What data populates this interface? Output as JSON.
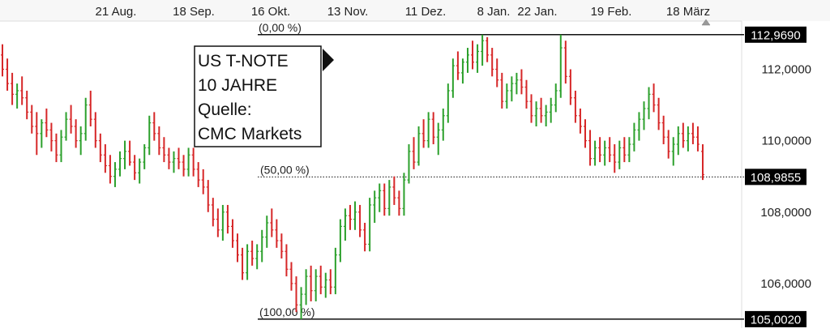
{
  "chart_data": {
    "type": "ohlc",
    "title": "",
    "info_box": [
      "US T-NOTE",
      "10 JAHRE",
      "Quelle:",
      "CMC Markets"
    ],
    "x_ticks": [
      "21 Aug.",
      "18 Sep.",
      "16 Okt.",
      "13 Nov.",
      "11 Dez.",
      "8 Jan.",
      "22 Jan.",
      "19 Feb.",
      "18 März"
    ],
    "y_ticks": [
      "106,0000",
      "108,0000",
      "110,0000",
      "112,0000"
    ],
    "y_tick_values": [
      106,
      108,
      110,
      112
    ],
    "ylim": [
      104.75,
      113.35
    ],
    "grid": false,
    "legend": "none",
    "fib_levels": [
      {
        "label": "(0,00 %)",
        "value": 112.969,
        "tag": "112,9690"
      },
      {
        "label": "(50,00 %)",
        "value": 108.9855,
        "tag": "108,9855"
      },
      {
        "label": "(100,00 %)",
        "value": 105.002,
        "tag": "105,0020"
      }
    ],
    "colors": {
      "up": "#2ca02c",
      "down": "#d62728",
      "line": "#111111",
      "tag_bg": "#000000",
      "axis_bg": "#f7f7f7"
    },
    "bars": [
      [
        112.4,
        112.7,
        111.8,
        112.0
      ],
      [
        112.0,
        112.3,
        111.4,
        111.6
      ],
      [
        111.6,
        111.9,
        111.0,
        111.3
      ],
      [
        111.3,
        111.6,
        110.9,
        111.4
      ],
      [
        111.4,
        111.8,
        111.0,
        111.2
      ],
      [
        111.2,
        111.4,
        110.6,
        110.8
      ],
      [
        110.8,
        111.0,
        110.2,
        110.4
      ],
      [
        110.4,
        110.8,
        109.6,
        110.2
      ],
      [
        110.2,
        110.6,
        109.8,
        110.5
      ],
      [
        110.5,
        110.9,
        110.1,
        110.3
      ],
      [
        110.3,
        110.5,
        109.7,
        110.0
      ],
      [
        110.0,
        110.2,
        109.4,
        109.6
      ],
      [
        109.6,
        110.3,
        109.4,
        110.1
      ],
      [
        110.1,
        110.8,
        110.0,
        110.6
      ],
      [
        110.6,
        111.0,
        110.2,
        110.4
      ],
      [
        110.4,
        110.6,
        109.8,
        110.0
      ],
      [
        110.0,
        110.4,
        109.6,
        110.2
      ],
      [
        110.2,
        111.2,
        110.0,
        111.0
      ],
      [
        111.0,
        111.4,
        110.4,
        110.6
      ],
      [
        110.6,
        110.8,
        109.8,
        110.0
      ],
      [
        110.0,
        110.2,
        109.4,
        109.6
      ],
      [
        109.6,
        109.9,
        109.1,
        109.3
      ],
      [
        109.3,
        109.6,
        108.8,
        109.0
      ],
      [
        109.0,
        109.4,
        108.7,
        109.2
      ],
      [
        109.2,
        109.7,
        109.0,
        109.5
      ],
      [
        109.5,
        110.0,
        109.2,
        109.7
      ],
      [
        109.7,
        110.0,
        109.3,
        109.4
      ],
      [
        109.4,
        109.6,
        108.9,
        109.1
      ],
      [
        109.1,
        109.5,
        108.8,
        109.4
      ],
      [
        109.4,
        109.9,
        109.2,
        109.8
      ],
      [
        109.8,
        110.7,
        109.6,
        110.5
      ],
      [
        110.5,
        110.8,
        110.0,
        110.2
      ],
      [
        110.2,
        110.4,
        109.6,
        109.8
      ],
      [
        109.8,
        110.1,
        109.4,
        109.6
      ],
      [
        109.6,
        109.8,
        109.2,
        109.4
      ],
      [
        109.4,
        109.7,
        109.1,
        109.5
      ],
      [
        109.5,
        109.8,
        109.2,
        109.4
      ],
      [
        109.4,
        109.6,
        109.0,
        109.2
      ],
      [
        109.2,
        109.8,
        109.0,
        109.6
      ],
      [
        109.6,
        109.8,
        109.0,
        109.2
      ],
      [
        109.2,
        109.4,
        108.7,
        108.9
      ],
      [
        108.9,
        109.2,
        108.5,
        108.7
      ],
      [
        108.7,
        108.9,
        108.0,
        108.2
      ],
      [
        108.2,
        108.4,
        107.6,
        107.8
      ],
      [
        107.8,
        108.1,
        107.3,
        107.5
      ],
      [
        107.5,
        108.2,
        107.2,
        108.0
      ],
      [
        108.0,
        108.2,
        107.4,
        107.6
      ],
      [
        107.6,
        107.8,
        107.0,
        107.2
      ],
      [
        107.2,
        107.4,
        106.6,
        106.8
      ],
      [
        106.8,
        107.0,
        106.1,
        106.3
      ],
      [
        106.3,
        107.1,
        106.1,
        106.9
      ],
      [
        106.9,
        107.2,
        106.5,
        106.7
      ],
      [
        106.7,
        107.1,
        106.4,
        106.9
      ],
      [
        106.9,
        107.5,
        106.6,
        107.3
      ],
      [
        107.3,
        107.9,
        107.0,
        107.7
      ],
      [
        107.7,
        108.1,
        107.3,
        107.5
      ],
      [
        107.5,
        107.8,
        107.0,
        107.2
      ],
      [
        107.2,
        107.4,
        106.7,
        106.9
      ],
      [
        106.9,
        107.1,
        106.2,
        106.4
      ],
      [
        106.4,
        106.6,
        105.8,
        106.0
      ],
      [
        106.0,
        106.2,
        105.2,
        105.4
      ],
      [
        105.4,
        105.9,
        105.0,
        105.7
      ],
      [
        105.7,
        106.4,
        105.4,
        106.2
      ],
      [
        106.2,
        106.5,
        105.5,
        105.8
      ],
      [
        105.8,
        106.4,
        105.5,
        106.2
      ],
      [
        106.2,
        106.5,
        105.7,
        105.9
      ],
      [
        105.9,
        106.3,
        105.6,
        106.1
      ],
      [
        106.1,
        106.4,
        105.7,
        105.9
      ],
      [
        105.9,
        107.0,
        105.7,
        106.8
      ],
      [
        106.8,
        107.8,
        106.6,
        107.6
      ],
      [
        107.6,
        108.1,
        107.2,
        107.9
      ],
      [
        107.9,
        108.2,
        107.5,
        107.8
      ],
      [
        107.8,
        108.3,
        107.5,
        108.0
      ],
      [
        108.0,
        108.2,
        107.3,
        107.5
      ],
      [
        107.5,
        107.7,
        106.9,
        107.1
      ],
      [
        107.1,
        108.4,
        106.9,
        108.2
      ],
      [
        108.2,
        108.6,
        107.7,
        108.4
      ],
      [
        108.4,
        108.8,
        108.0,
        108.6
      ],
      [
        108.6,
        108.8,
        107.9,
        108.1
      ],
      [
        108.1,
        108.9,
        107.9,
        108.7
      ],
      [
        108.7,
        109.0,
        108.2,
        108.4
      ],
      [
        108.4,
        108.6,
        107.9,
        108.1
      ],
      [
        108.1,
        109.1,
        107.9,
        108.9
      ],
      [
        108.9,
        109.9,
        108.8,
        109.7
      ],
      [
        109.7,
        110.1,
        109.2,
        109.4
      ],
      [
        109.4,
        110.4,
        109.3,
        110.2
      ],
      [
        110.2,
        110.6,
        109.8,
        110.0
      ],
      [
        110.0,
        110.8,
        109.8,
        110.6
      ],
      [
        110.6,
        110.8,
        109.9,
        110.1
      ],
      [
        110.1,
        110.5,
        109.6,
        110.3
      ],
      [
        110.3,
        110.9,
        110.0,
        110.7
      ],
      [
        110.7,
        111.6,
        110.5,
        111.4
      ],
      [
        111.4,
        112.3,
        111.2,
        112.1
      ],
      [
        112.1,
        112.5,
        111.7,
        111.9
      ],
      [
        111.9,
        112.3,
        111.6,
        112.2
      ],
      [
        112.2,
        112.6,
        111.9,
        112.4
      ],
      [
        112.4,
        112.8,
        112.0,
        112.2
      ],
      [
        112.2,
        112.7,
        111.9,
        112.5
      ],
      [
        112.5,
        112.969,
        112.1,
        112.8
      ],
      [
        112.8,
        112.9,
        112.2,
        112.4
      ],
      [
        112.4,
        112.6,
        111.8,
        112.0
      ],
      [
        112.0,
        112.3,
        111.5,
        111.7
      ],
      [
        111.7,
        111.9,
        110.9,
        111.1
      ],
      [
        111.1,
        111.6,
        110.9,
        111.4
      ],
      [
        111.4,
        111.8,
        111.1,
        111.6
      ],
      [
        111.6,
        111.9,
        111.3,
        111.7
      ],
      [
        111.7,
        112.0,
        111.3,
        111.5
      ],
      [
        111.5,
        111.7,
        110.9,
        111.1
      ],
      [
        111.1,
        111.3,
        110.5,
        110.7
      ],
      [
        110.7,
        111.1,
        110.4,
        110.9
      ],
      [
        110.9,
        111.2,
        110.5,
        110.7
      ],
      [
        110.7,
        111.0,
        110.4,
        110.8
      ],
      [
        110.8,
        111.2,
        110.5,
        111.0
      ],
      [
        111.0,
        111.6,
        110.8,
        111.4
      ],
      [
        111.4,
        112.969,
        111.2,
        112.6
      ],
      [
        112.6,
        112.8,
        111.6,
        111.8
      ],
      [
        111.8,
        112.0,
        111.0,
        111.2
      ],
      [
        111.2,
        111.4,
        110.5,
        110.7
      ],
      [
        110.7,
        110.9,
        110.2,
        110.4
      ],
      [
        110.4,
        110.6,
        109.8,
        110.0
      ],
      [
        110.0,
        110.3,
        109.3,
        109.5
      ],
      [
        109.5,
        110.0,
        109.3,
        109.8
      ],
      [
        109.8,
        110.1,
        109.4,
        109.6
      ],
      [
        109.6,
        110.0,
        109.3,
        109.8
      ],
      [
        109.8,
        110.1,
        109.4,
        109.6
      ],
      [
        109.6,
        109.9,
        109.1,
        109.4
      ],
      [
        109.4,
        110.0,
        109.2,
        109.8
      ],
      [
        109.8,
        110.1,
        109.4,
        109.6
      ],
      [
        109.6,
        110.1,
        109.4,
        109.9
      ],
      [
        109.9,
        110.5,
        109.7,
        110.3
      ],
      [
        110.3,
        110.8,
        110.0,
        110.6
      ],
      [
        110.6,
        111.1,
        110.3,
        110.9
      ],
      [
        110.9,
        111.5,
        110.6,
        111.3
      ],
      [
        111.3,
        111.6,
        110.8,
        111.0
      ],
      [
        111.0,
        111.2,
        110.3,
        110.5
      ],
      [
        110.5,
        110.7,
        109.9,
        110.1
      ],
      [
        110.1,
        110.3,
        109.5,
        109.7
      ],
      [
        109.7,
        110.1,
        109.3,
        109.9
      ],
      [
        109.9,
        110.4,
        109.6,
        110.2
      ],
      [
        110.2,
        110.5,
        109.8,
        110.0
      ],
      [
        110.0,
        110.4,
        109.7,
        110.2
      ],
      [
        110.2,
        110.5,
        109.9,
        110.1
      ],
      [
        110.1,
        110.4,
        109.7,
        109.9
      ],
      [
        109.7,
        109.9,
        108.9,
        109.05
      ]
    ]
  }
}
